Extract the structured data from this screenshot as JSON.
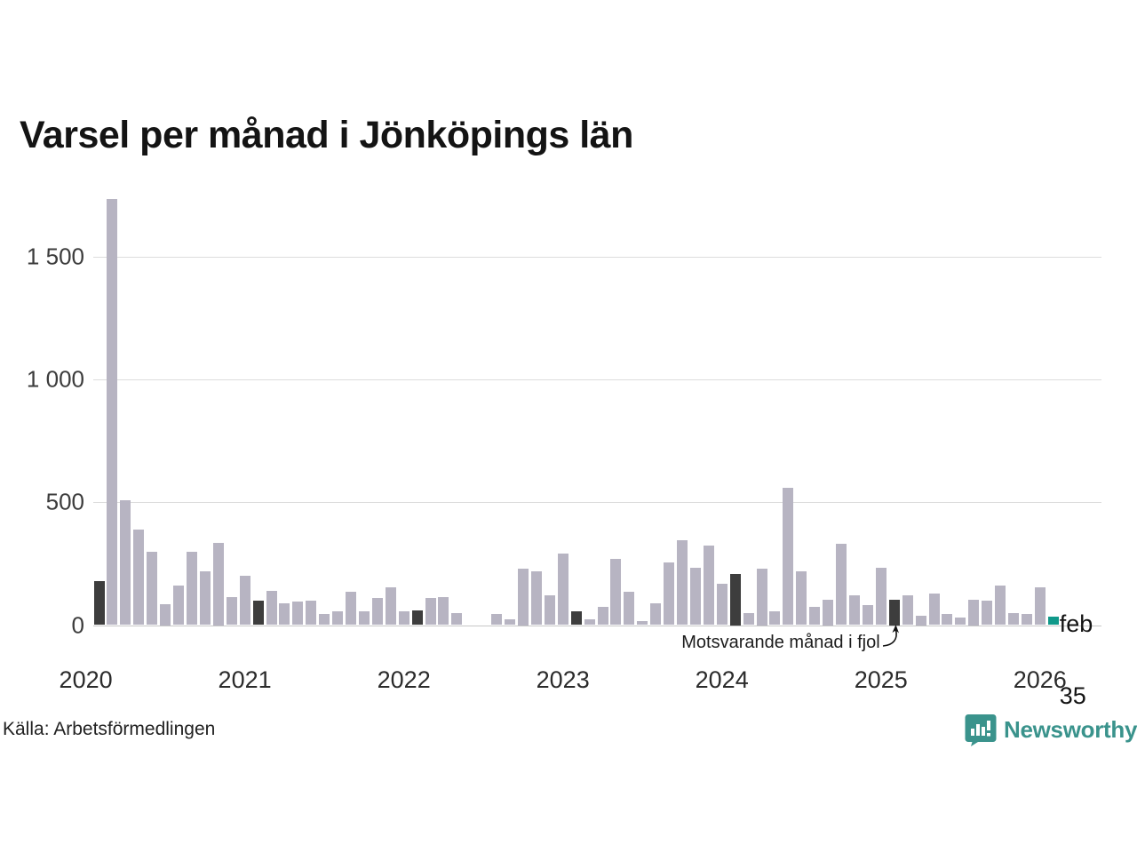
{
  "chart_data": {
    "type": "bar",
    "title": "Varsel per månad i Jönköpings län",
    "source": "Källa: Arbetsförmedlingen",
    "xlabel": "",
    "ylabel": "",
    "ylim": [
      0,
      1750
    ],
    "grid": "horizontal",
    "yticks": [
      {
        "value": 0,
        "label": "0"
      },
      {
        "value": 500,
        "label": "500"
      },
      {
        "value": 1000,
        "label": "1 000"
      },
      {
        "value": 1500,
        "label": "1 500"
      }
    ],
    "years": [
      "2020",
      "2021",
      "2022",
      "2023",
      "2024",
      "2025",
      "2026"
    ],
    "annotation": {
      "text": "Motsvarande månad i fjol",
      "target_month": "2025-02"
    },
    "current_label": {
      "line1": "feb",
      "line2": "35"
    },
    "colors": {
      "bar": "#b7b4c2",
      "last_year_month": "#3d3d3d",
      "current": "#10998a"
    },
    "months": [
      {
        "m": "2020-02",
        "v": 180,
        "hl": "fjol"
      },
      {
        "m": "2020-03",
        "v": 1735
      },
      {
        "m": "2020-04",
        "v": 510
      },
      {
        "m": "2020-05",
        "v": 390
      },
      {
        "m": "2020-06",
        "v": 300
      },
      {
        "m": "2020-07",
        "v": 85
      },
      {
        "m": "2020-08",
        "v": 160
      },
      {
        "m": "2020-09",
        "v": 300
      },
      {
        "m": "2020-10",
        "v": 220
      },
      {
        "m": "2020-11",
        "v": 335
      },
      {
        "m": "2020-12",
        "v": 115
      },
      {
        "m": "2021-01",
        "v": 200
      },
      {
        "m": "2021-02",
        "v": 100,
        "hl": "fjol"
      },
      {
        "m": "2021-03",
        "v": 140
      },
      {
        "m": "2021-04",
        "v": 90
      },
      {
        "m": "2021-05",
        "v": 95
      },
      {
        "m": "2021-06",
        "v": 100
      },
      {
        "m": "2021-07",
        "v": 45
      },
      {
        "m": "2021-08",
        "v": 55
      },
      {
        "m": "2021-09",
        "v": 135
      },
      {
        "m": "2021-10",
        "v": 55
      },
      {
        "m": "2021-11",
        "v": 110
      },
      {
        "m": "2021-12",
        "v": 155
      },
      {
        "m": "2022-01",
        "v": 55
      },
      {
        "m": "2022-02",
        "v": 60,
        "hl": "fjol"
      },
      {
        "m": "2022-03",
        "v": 110
      },
      {
        "m": "2022-04",
        "v": 115
      },
      {
        "m": "2022-05",
        "v": 50
      },
      {
        "m": "2022-06",
        "v": 0
      },
      {
        "m": "2022-07",
        "v": 0
      },
      {
        "m": "2022-08",
        "v": 45
      },
      {
        "m": "2022-09",
        "v": 22
      },
      {
        "m": "2022-10",
        "v": 230
      },
      {
        "m": "2022-11",
        "v": 220
      },
      {
        "m": "2022-12",
        "v": 120
      },
      {
        "m": "2023-01",
        "v": 290
      },
      {
        "m": "2023-02",
        "v": 55,
        "hl": "fjol"
      },
      {
        "m": "2023-03",
        "v": 25
      },
      {
        "m": "2023-04",
        "v": 75
      },
      {
        "m": "2023-05",
        "v": 270
      },
      {
        "m": "2023-06",
        "v": 135
      },
      {
        "m": "2023-07",
        "v": 15
      },
      {
        "m": "2023-08",
        "v": 90
      },
      {
        "m": "2023-09",
        "v": 255
      },
      {
        "m": "2023-10",
        "v": 345
      },
      {
        "m": "2023-11",
        "v": 235
      },
      {
        "m": "2023-12",
        "v": 325
      },
      {
        "m": "2024-01",
        "v": 170
      },
      {
        "m": "2024-02",
        "v": 210,
        "hl": "fjol"
      },
      {
        "m": "2024-03",
        "v": 50
      },
      {
        "m": "2024-04",
        "v": 230
      },
      {
        "m": "2024-05",
        "v": 55
      },
      {
        "m": "2024-06",
        "v": 560
      },
      {
        "m": "2024-07",
        "v": 220
      },
      {
        "m": "2024-08",
        "v": 75
      },
      {
        "m": "2024-09",
        "v": 105
      },
      {
        "m": "2024-10",
        "v": 330
      },
      {
        "m": "2024-11",
        "v": 120
      },
      {
        "m": "2024-12",
        "v": 80
      },
      {
        "m": "2025-01",
        "v": 235
      },
      {
        "m": "2025-02",
        "v": 105,
        "hl": "fjol"
      },
      {
        "m": "2025-03",
        "v": 120
      },
      {
        "m": "2025-04",
        "v": 40
      },
      {
        "m": "2025-05",
        "v": 130
      },
      {
        "m": "2025-06",
        "v": 45
      },
      {
        "m": "2025-07",
        "v": 30
      },
      {
        "m": "2025-08",
        "v": 105
      },
      {
        "m": "2025-09",
        "v": 100
      },
      {
        "m": "2025-10",
        "v": 160
      },
      {
        "m": "2025-11",
        "v": 50
      },
      {
        "m": "2025-12",
        "v": 45
      },
      {
        "m": "2026-01",
        "v": 155
      },
      {
        "m": "2026-02",
        "v": 35,
        "hl": "current"
      }
    ]
  },
  "branding": {
    "logo_text": "Newsworthy",
    "logo_color": "#3a938c"
  }
}
